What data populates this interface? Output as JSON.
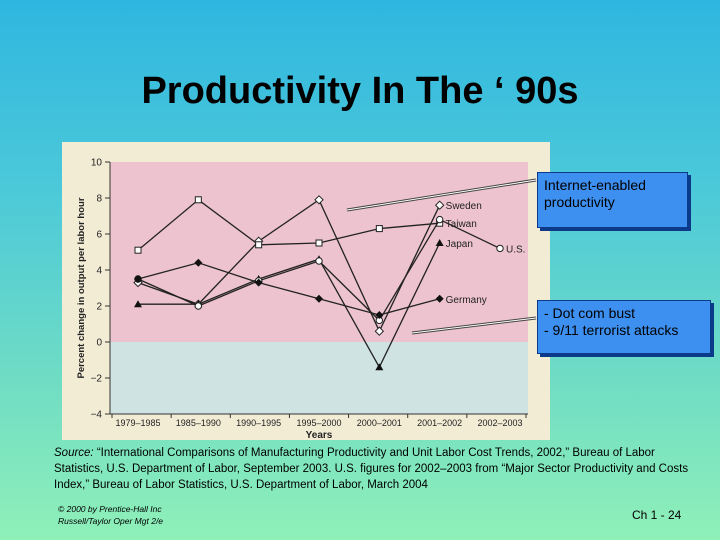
{
  "slide": {
    "title": "Productivity In The ‘ 90s",
    "callouts": {
      "internet": [
        "Internet-enabled",
        "productivity"
      ],
      "dotcom": [
        "- Dot com bust",
        "- 9/11 terrorist attacks"
      ]
    },
    "source": {
      "label": "Source:",
      "text": " “International Comparisons of Manufacturing Productivity and Unit Labor Cost Trends, 2002,” Bureau of Labor Statistics, U.S. Department of Labor, September 2003. U.S. figures for 2002–2003 from “Major Sector Productivity and Costs Index,” Bureau of Labor Statistics, U.S. Department of Labor, March 2004"
    },
    "footer": {
      "copyright": "© 2000 by Prentice-Hall Inc",
      "book": "Russell/Taylor Oper Mgt 2/e",
      "page": "Ch 1 - 24"
    }
  },
  "colors": {
    "positive_band": "#ecc3cf",
    "negative_band": "#cfe3e3",
    "panel": "#f3ecd5",
    "callout": "#3d8ff0"
  },
  "chart_data": {
    "type": "line",
    "xlabel": "Years",
    "ylabel": "Percent change in output per labor hour",
    "x_ticks": [
      "1979",
      "1985",
      "1990",
      "1995",
      "2000",
      "2001",
      "2002",
      "2003"
    ],
    "x_tick_labels": [
      "1979–1985",
      "1985–1990",
      "1990–1995",
      "1995–2000",
      "2000–2001",
      "2001–2002",
      "2002–2003"
    ],
    "y_ticks": [
      -4,
      -2,
      0,
      2,
      4,
      6,
      8,
      10
    ],
    "ylim": [
      -4,
      10
    ],
    "grid": false,
    "series": [
      {
        "name": "Sweden",
        "marker": "open-diamond",
        "values": [
          3.3,
          2.1,
          5.6,
          7.9,
          0.6,
          7.6,
          null
        ]
      },
      {
        "name": "Taiwan",
        "marker": "open-square",
        "values": [
          5.1,
          7.9,
          5.4,
          5.5,
          6.3,
          6.6,
          null
        ]
      },
      {
        "name": "Japan",
        "marker": "filled-triangle",
        "values": [
          2.1,
          2.1,
          3.5,
          4.6,
          -1.4,
          5.5,
          null
        ]
      },
      {
        "name": "U.S.",
        "marker": "open-circle",
        "values": [
          3.5,
          2.0,
          3.4,
          4.5,
          1.2,
          6.8,
          5.2
        ]
      },
      {
        "name": "Germany",
        "marker": "filled-diamond",
        "values": [
          3.5,
          4.4,
          3.3,
          2.4,
          1.5,
          2.4,
          null
        ]
      }
    ]
  }
}
